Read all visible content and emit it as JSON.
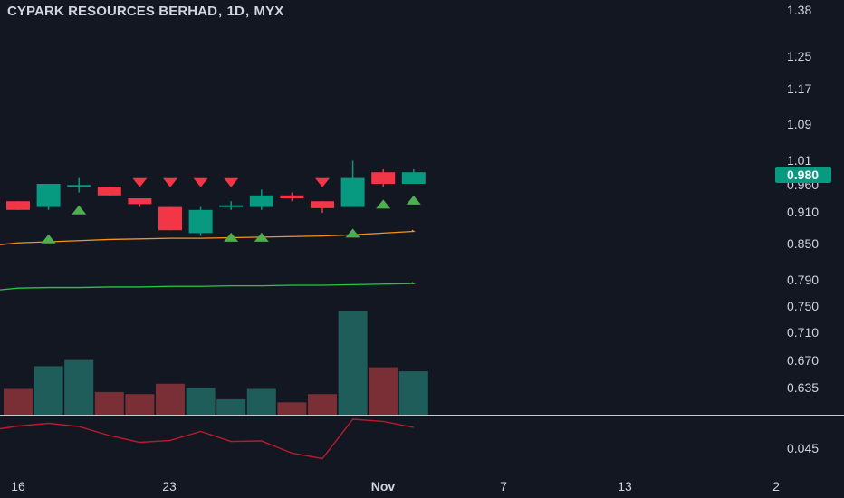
{
  "header": {
    "symbol": "CYPARK RESOURCES BERHAD",
    "interval": "1D",
    "exchange": "MYX"
  },
  "colors": {
    "background": "#131722",
    "up": "#089981",
    "down": "#f23645",
    "up_volume": "#1f5d5a",
    "down_volume": "#7a2e36",
    "ma_fast": "#f7931a",
    "ma_slow": "#26c940",
    "oscillator": "#b71c2c",
    "signal_buy": "#4caf50",
    "signal_sell": "#f23645",
    "axis_text": "#d1d4dc",
    "separator": "#c7c9d1"
  },
  "chart_data": {
    "type": "candlestick",
    "price_axis_ticks": [
      "1.38",
      "1.25",
      "1.17",
      "1.09",
      "1.01",
      "0.960",
      "0.910",
      "0.850",
      "0.790",
      "0.750",
      "0.710",
      "0.670",
      "0.635",
      "0.045"
    ],
    "time_axis_ticks": [
      "16",
      "23",
      "Nov",
      "7",
      "13",
      "2"
    ],
    "last_price": "0.980",
    "candles": [
      {
        "open": 0.93,
        "high": 0.93,
        "low": 0.915,
        "close": 0.915
      },
      {
        "open": 0.92,
        "high": 0.96,
        "low": 0.915,
        "close": 0.96
      },
      {
        "open": 0.955,
        "high": 0.97,
        "low": 0.945,
        "close": 0.958
      },
      {
        "open": 0.955,
        "high": 0.955,
        "low": 0.94,
        "close": 0.94
      },
      {
        "open": 0.935,
        "high": 0.935,
        "low": 0.92,
        "close": 0.925
      },
      {
        "open": 0.92,
        "high": 0.92,
        "low": 0.88,
        "close": 0.88
      },
      {
        "open": 0.875,
        "high": 0.92,
        "low": 0.87,
        "close": 0.915
      },
      {
        "open": 0.92,
        "high": 0.93,
        "low": 0.915,
        "close": 0.923
      },
      {
        "open": 0.92,
        "high": 0.95,
        "low": 0.915,
        "close": 0.94
      },
      {
        "open": 0.94,
        "high": 0.945,
        "low": 0.93,
        "close": 0.935
      },
      {
        "open": 0.93,
        "high": 0.93,
        "low": 0.91,
        "close": 0.918
      },
      {
        "open": 0.92,
        "high": 1.0,
        "low": 0.92,
        "close": 0.97
      },
      {
        "open": 0.98,
        "high": 0.985,
        "low": 0.955,
        "close": 0.96
      },
      {
        "open": 0.96,
        "high": 0.985,
        "low": 0.96,
        "close": 0.98
      }
    ],
    "volumes": [
      {
        "value": 0.25,
        "dir": "down"
      },
      {
        "value": 0.47,
        "dir": "up"
      },
      {
        "value": 0.53,
        "dir": "up"
      },
      {
        "value": 0.22,
        "dir": "down"
      },
      {
        "value": 0.2,
        "dir": "down"
      },
      {
        "value": 0.3,
        "dir": "down"
      },
      {
        "value": 0.26,
        "dir": "up"
      },
      {
        "value": 0.15,
        "dir": "up"
      },
      {
        "value": 0.25,
        "dir": "up"
      },
      {
        "value": 0.12,
        "dir": "down"
      },
      {
        "value": 0.2,
        "dir": "down"
      },
      {
        "value": 1.0,
        "dir": "up"
      },
      {
        "value": 0.46,
        "dir": "down"
      },
      {
        "value": 0.42,
        "dir": "up"
      }
    ],
    "ma_fast": [
      0.858,
      0.86,
      0.862,
      0.864,
      0.865,
      0.866,
      0.866,
      0.867,
      0.868,
      0.869,
      0.87,
      0.872,
      0.875,
      0.878
    ],
    "ma_slow": [
      0.78,
      0.781,
      0.781,
      0.782,
      0.782,
      0.783,
      0.783,
      0.784,
      0.784,
      0.785,
      0.785,
      0.786,
      0.787,
      0.788
    ],
    "oscillator": [
      0.65,
      0.75,
      0.63,
      0.3,
      0.05,
      0.12,
      0.45,
      0.08,
      0.1,
      -0.35,
      -0.55,
      0.9,
      0.82,
      0.6
    ],
    "signals": [
      {
        "index": 1,
        "type": "buy",
        "price": 0.865
      },
      {
        "index": 2,
        "type": "buy",
        "price": 0.915
      },
      {
        "index": 4,
        "type": "sell",
        "price": 0.962
      },
      {
        "index": 5,
        "type": "sell",
        "price": 0.962
      },
      {
        "index": 6,
        "type": "sell",
        "price": 0.962
      },
      {
        "index": 7,
        "type": "sell",
        "price": 0.962
      },
      {
        "index": 7,
        "type": "buy",
        "price": 0.868
      },
      {
        "index": 8,
        "type": "buy",
        "price": 0.868
      },
      {
        "index": 10,
        "type": "sell",
        "price": 0.962
      },
      {
        "index": 11,
        "type": "buy",
        "price": 0.875
      },
      {
        "index": 12,
        "type": "buy",
        "price": 0.925
      },
      {
        "index": 13,
        "type": "buy",
        "price": 0.932
      }
    ]
  }
}
